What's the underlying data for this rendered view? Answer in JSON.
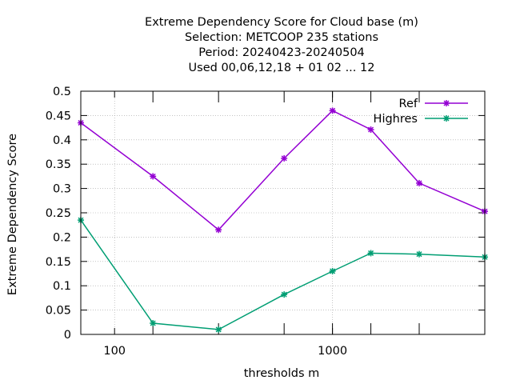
{
  "chart_data": {
    "type": "line",
    "title_lines": [
      "Extreme Dependency Score  for Cloud base (m)",
      "Selection: METCOOP    235 stations",
      "Period: 20240423-20240504",
      "Used  00,06,12,18 + 01 02 ... 12"
    ],
    "xlabel": "thresholds m",
    "ylabel": "Extreme Dependency Score",
    "x_scale": "log",
    "xlim": [
      70,
      5000
    ],
    "ylim": [
      0,
      0.5
    ],
    "x_tick_labels": [
      "100",
      "1000"
    ],
    "y_tick_labels": [
      "0",
      "0.05",
      "0.1",
      "0.15",
      "0.2",
      "0.25",
      "0.3",
      "0.35",
      "0.4",
      "0.45",
      "0.5"
    ],
    "grid": true,
    "legend_position": "top-right",
    "x": [
      70,
      150,
      300,
      600,
      1000,
      1500,
      2500,
      5000
    ],
    "series": [
      {
        "name": "Ref",
        "color": "#9400d3",
        "values": [
          0.435,
          0.325,
          0.215,
          0.362,
          0.46,
          0.421,
          0.311,
          0.253
        ]
      },
      {
        "name": "Highres",
        "color": "#009e73",
        "values": [
          0.235,
          0.023,
          0.01,
          0.082,
          0.13,
          0.167,
          0.165,
          0.159
        ]
      }
    ]
  }
}
